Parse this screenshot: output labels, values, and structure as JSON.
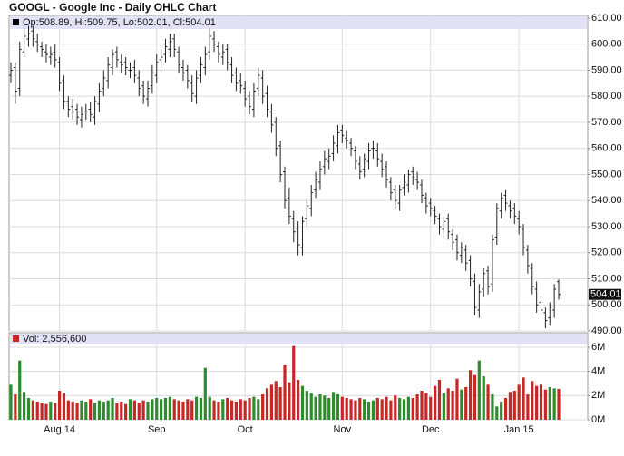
{
  "chart_data": [
    {
      "type": "ohlc",
      "title": "GOOGL - Google Inc - Daily OHLC Chart",
      "legend_text": "Op:508.89, Hi:509.75, Lo:502.01, Cl:504.01",
      "color": "#222222",
      "grid": true,
      "open": [
        588,
        591,
        583,
        597,
        602,
        605,
        601,
        599,
        597,
        595,
        597,
        593,
        586,
        578,
        576,
        575,
        571,
        574,
        575,
        572,
        577,
        583,
        586,
        591,
        597,
        593,
        593,
        590,
        591,
        587,
        584,
        579,
        584,
        588,
        594,
        596,
        598,
        602,
        597,
        591,
        590,
        585,
        580,
        588,
        591,
        597,
        602,
        599,
        595,
        598,
        592,
        589,
        586,
        583,
        580,
        575,
        583,
        587,
        581,
        574,
        570,
        561,
        551,
        541,
        533,
        529,
        522,
        533,
        537,
        544,
        547,
        553,
        555,
        558,
        561,
        567,
        564,
        562,
        559,
        554,
        552,
        555,
        560,
        559,
        555,
        553,
        547,
        544,
        539,
        545,
        546,
        551,
        548,
        546,
        541,
        539,
        536,
        533,
        529,
        533,
        527,
        525,
        519,
        521,
        517,
        509,
        498,
        506,
        513,
        508,
        526,
        536,
        542,
        538,
        537,
        533,
        529,
        521,
        514,
        506,
        501,
        497,
        495,
        498,
        508.89
      ],
      "high": [
        593,
        593,
        601,
        606,
        607,
        607,
        604,
        601,
        600,
        599,
        600,
        595,
        588,
        580,
        579,
        577,
        576,
        577,
        578,
        580,
        585,
        590,
        595,
        598,
        599,
        596,
        595,
        593,
        594,
        590,
        586,
        586,
        592,
        596,
        598,
        602,
        604,
        604,
        599,
        594,
        592,
        588,
        590,
        595,
        599,
        606,
        605,
        601,
        600,
        600,
        595,
        591,
        589,
        586,
        582,
        585,
        591,
        590,
        584,
        577,
        572,
        563,
        553,
        545,
        536,
        532,
        534,
        541,
        546,
        551,
        555,
        559,
        560,
        565,
        569,
        569,
        567,
        564,
        561,
        557,
        558,
        562,
        563,
        562,
        558,
        555,
        549,
        546,
        546,
        550,
        552,
        553,
        551,
        548,
        543,
        541,
        538,
        535,
        534,
        535,
        529,
        527,
        524,
        523,
        519,
        512,
        508,
        514,
        515,
        527,
        539,
        543,
        544,
        540,
        539,
        536,
        531,
        523,
        516,
        509,
        503,
        499,
        501,
        508,
        509.75
      ],
      "low": [
        585,
        577,
        580,
        595,
        599,
        599,
        597,
        595,
        593,
        592,
        591,
        582,
        575,
        572,
        571,
        569,
        568,
        571,
        570,
        569,
        574,
        580,
        583,
        588,
        591,
        589,
        588,
        587,
        585,
        580,
        577,
        576,
        581,
        585,
        591,
        593,
        595,
        595,
        589,
        586,
        583,
        578,
        577,
        585,
        588,
        594,
        597,
        593,
        592,
        590,
        585,
        582,
        581,
        576,
        573,
        572,
        580,
        577,
        572,
        566,
        557,
        547,
        537,
        531,
        524,
        519,
        519,
        530,
        534,
        541,
        544,
        550,
        552,
        555,
        558,
        562,
        560,
        557,
        552,
        548,
        549,
        552,
        556,
        553,
        549,
        545,
        540,
        537,
        536,
        542,
        543,
        546,
        544,
        539,
        535,
        534,
        531,
        527,
        526,
        525,
        521,
        517,
        516,
        513,
        507,
        496,
        495,
        503,
        504,
        505,
        523,
        533,
        536,
        533,
        531,
        527,
        519,
        512,
        504,
        497,
        495,
        491,
        492,
        495,
        502.01
      ],
      "close": [
        590,
        582,
        598,
        603,
        604,
        602,
        600,
        598,
        596,
        596,
        594,
        585,
        578,
        575,
        574,
        572,
        573,
        574,
        573,
        578,
        582,
        587,
        592,
        596,
        594,
        592,
        591,
        590,
        588,
        583,
        580,
        583,
        589,
        593,
        595,
        599,
        601,
        598,
        592,
        589,
        586,
        581,
        587,
        592,
        596,
        603,
        600,
        596,
        597,
        593,
        588,
        585,
        584,
        579,
        576,
        582,
        588,
        580,
        575,
        569,
        560,
        550,
        540,
        534,
        528,
        523,
        532,
        538,
        543,
        548,
        552,
        556,
        557,
        562,
        566,
        565,
        563,
        560,
        555,
        551,
        556,
        559,
        560,
        556,
        552,
        548,
        543,
        540,
        544,
        547,
        550,
        549,
        547,
        542,
        538,
        537,
        534,
        530,
        532,
        528,
        524,
        520,
        522,
        516,
        510,
        499,
        505,
        512,
        507,
        525,
        537,
        541,
        539,
        536,
        534,
        530,
        522,
        515,
        507,
        500,
        498,
        494,
        499,
        506,
        504.01
      ],
      "ylim": [
        490,
        611
      ],
      "yticks": [
        {
          "value": 490,
          "label": "490.00"
        },
        {
          "value": 500,
          "label": "500.00"
        },
        {
          "value": 510,
          "label": "510.00"
        },
        {
          "value": 520,
          "label": "520.00"
        },
        {
          "value": 530,
          "label": "530.00"
        },
        {
          "value": 540,
          "label": "540.00"
        },
        {
          "value": 550,
          "label": "550.00"
        },
        {
          "value": 560,
          "label": "560.00"
        },
        {
          "value": 570,
          "label": "570.00"
        },
        {
          "value": 580,
          "label": "580.00"
        },
        {
          "value": 590,
          "label": "590.00"
        },
        {
          "value": 600,
          "label": "600.00"
        },
        {
          "value": 610,
          "label": "610.00"
        }
      ]
    },
    {
      "type": "bar",
      "legend_text": "Vol: 2,556,600",
      "up_color": "#2e8b2e",
      "down_color": "#c62828",
      "grid": true,
      "categories": [
        null,
        null,
        null,
        null,
        null,
        null,
        null,
        null,
        null,
        null,
        null,
        "Aug 14",
        null,
        null,
        null,
        null,
        null,
        null,
        null,
        null,
        null,
        null,
        null,
        null,
        null,
        null,
        null,
        null,
        null,
        null,
        null,
        null,
        null,
        "Sep",
        null,
        null,
        null,
        null,
        null,
        null,
        null,
        null,
        null,
        null,
        null,
        null,
        null,
        null,
        null,
        null,
        null,
        null,
        null,
        "Oct",
        null,
        null,
        null,
        null,
        null,
        null,
        null,
        null,
        null,
        null,
        null,
        null,
        null,
        null,
        null,
        null,
        null,
        null,
        null,
        null,
        null,
        "Nov",
        null,
        null,
        null,
        null,
        null,
        null,
        null,
        null,
        null,
        null,
        null,
        null,
        null,
        null,
        null,
        null,
        null,
        null,
        null,
        "Dec",
        null,
        null,
        null,
        null,
        null,
        null,
        null,
        null,
        null,
        null,
        null,
        null,
        null,
        null,
        null,
        null,
        null,
        null,
        null,
        "Jan 15",
        null,
        null,
        null,
        null,
        null,
        null,
        null,
        null,
        null
      ],
      "values": [
        2.9,
        2.1,
        4.9,
        2.3,
        1.8,
        1.6,
        1.5,
        1.4,
        1.3,
        1.5,
        1.4,
        2.4,
        2.2,
        1.6,
        1.5,
        1.4,
        1.6,
        1.5,
        1.7,
        1.4,
        1.6,
        1.5,
        1.6,
        1.8,
        1.4,
        1.5,
        1.3,
        1.7,
        1.6,
        1.4,
        1.6,
        1.5,
        1.7,
        1.8,
        1.7,
        1.8,
        1.9,
        1.7,
        1.6,
        1.5,
        1.7,
        1.6,
        1.9,
        1.8,
        4.3,
        1.9,
        1.6,
        1.5,
        1.7,
        1.8,
        1.6,
        1.5,
        1.7,
        1.6,
        1.8,
        1.9,
        1.7,
        2.1,
        2.6,
        2.9,
        3.2,
        2.7,
        4.5,
        3.1,
        6.1,
        3.3,
        2.8,
        2.4,
        2.2,
        1.9,
        2.1,
        2.0,
        1.8,
        2.3,
        2.1,
        1.9,
        1.8,
        1.7,
        1.6,
        1.8,
        1.7,
        1.5,
        1.6,
        1.8,
        1.7,
        1.9,
        1.6,
        2.0,
        1.8,
        1.7,
        1.9,
        1.8,
        2.1,
        2.4,
        2.2,
        1.9,
        2.8,
        3.3,
        2.2,
        2.6,
        2.4,
        3.4,
        2.5,
        2.7,
        4.1,
        3.7,
        4.9,
        3.6,
        2.9,
        2.1,
        1.1,
        1.5,
        1.8,
        2.3,
        2.4,
        2.9,
        3.5,
        2.1,
        3.2,
        2.8,
        2.9,
        2.5,
        2.7,
        2.6,
        2.5566
      ],
      "ylim": [
        0,
        7.2
      ],
      "yticks": [
        {
          "value": 0,
          "label": "0M"
        },
        {
          "value": 2,
          "label": "2M"
        },
        {
          "value": 4,
          "label": "4M"
        },
        {
          "value": 6,
          "label": "6M"
        }
      ]
    }
  ]
}
